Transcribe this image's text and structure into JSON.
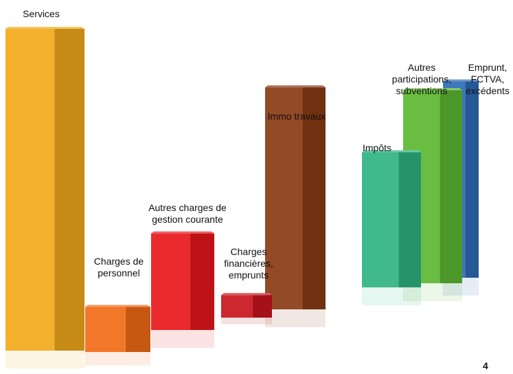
{
  "chart_data": {
    "type": "bar",
    "style": "3d-columns",
    "grid": false,
    "legend": "none",
    "groups": [
      {
        "name": "",
        "categories": [
          "Services",
          "Charges de personnel",
          "Autres charges de gestion courante",
          "Charges financières, emprunts",
          "Immo travaux"
        ],
        "values": [
          100,
          14,
          30,
          7,
          69
        ]
      },
      {
        "name": "",
        "categories": [
          "Impôts",
          "Autres participations, subventions",
          "Emprunt, FCTVA, excédents"
        ],
        "values": [
          42,
          60,
          61
        ]
      }
    ],
    "colors": [
      "#f2a91a",
      "#f26b16",
      "#e8171b",
      "#c9141e",
      "#8a3a14",
      "#2fb382",
      "#5cb832",
      "#2d6bb4"
    ]
  },
  "labels": [
    {
      "lines": [
        "Services"
      ]
    },
    {
      "lines": [
        "Charges de",
        "personnel"
      ]
    },
    {
      "lines": [
        "Autres charges de",
        "gestion courante"
      ]
    },
    {
      "lines": [
        "Charges",
        "financières,",
        "emprunts"
      ]
    },
    {
      "lines": [
        "Immo travaux"
      ]
    },
    {
      "lines": [
        "Impôts"
      ]
    },
    {
      "lines": [
        "Autres",
        "participations,",
        "subventions"
      ]
    },
    {
      "lines": [
        "Emprunt,",
        "FCTVA,",
        "excédents"
      ]
    }
  ],
  "page_number": "4"
}
